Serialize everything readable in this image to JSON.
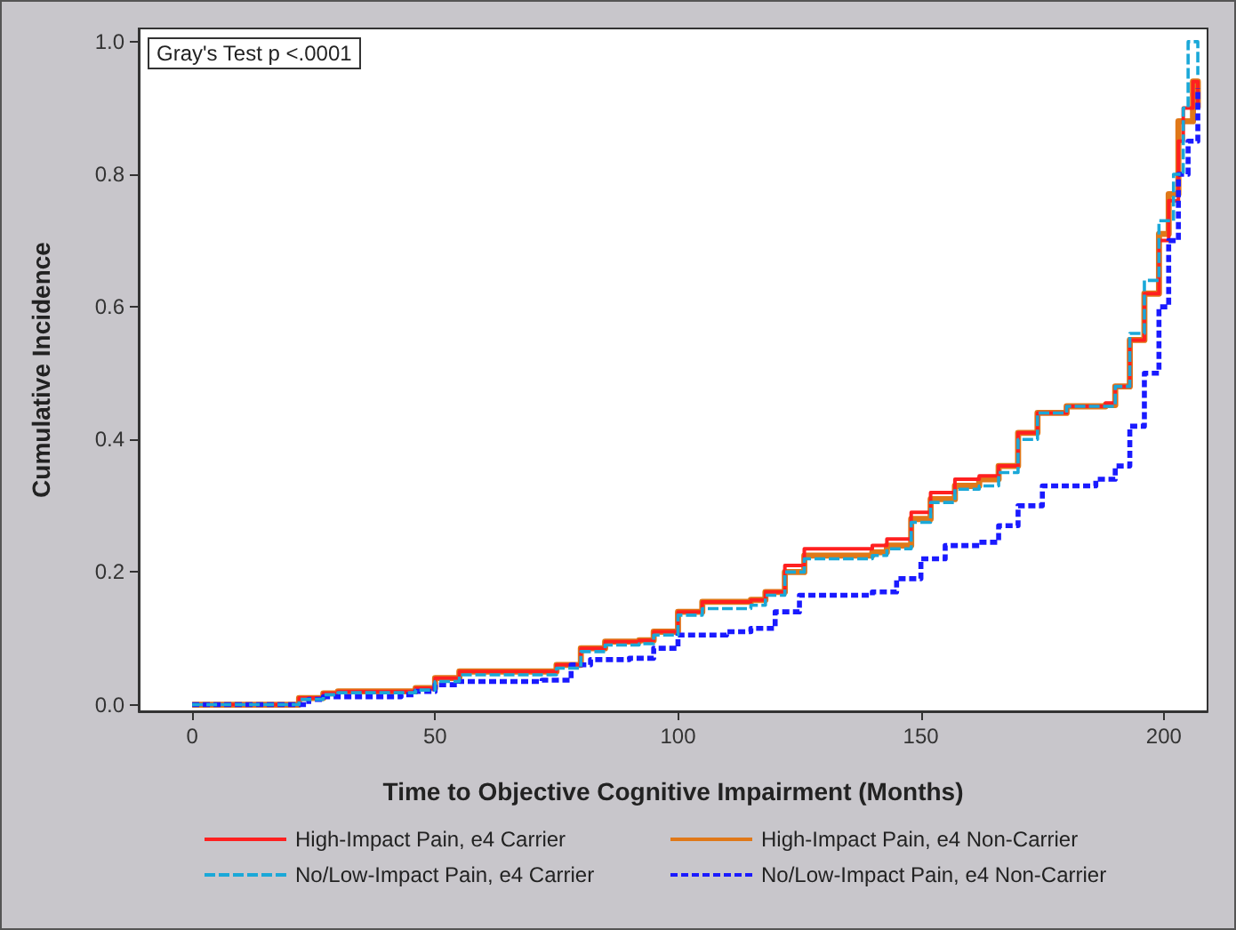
{
  "chart_data": {
    "type": "step",
    "xlabel": "Time to Objective Cognitive Impairment (Months)",
    "ylabel": "Cumulative Incidence",
    "annotations": [
      "Gray's Test p <.0001"
    ],
    "xlim": [
      -11,
      209
    ],
    "xticks": [
      0,
      50,
      100,
      150,
      200
    ],
    "ylim": [
      -0.01,
      1.02
    ],
    "yticks": [
      {
        "value": 0,
        "label": "0.0"
      },
      {
        "value": 0.2,
        "label": "0.2"
      },
      {
        "value": 0.4,
        "label": "0.4"
      },
      {
        "value": 0.6,
        "label": "0.6"
      },
      {
        "value": 0.8,
        "label": "0.8"
      },
      {
        "value": 1,
        "label": "1.0"
      }
    ],
    "grid": false,
    "legend": "bottom",
    "marker": "none",
    "series": [
      {
        "name": "High-Impact Pain, e4 Carrier",
        "color": "#ff2020",
        "line_style": "solid",
        "x": [
          0,
          18,
          22,
          27,
          30,
          43,
          46,
          50,
          55,
          70,
          75,
          80,
          85,
          92,
          95,
          100,
          105,
          115,
          118,
          122,
          126,
          140,
          143,
          148,
          152,
          157,
          162,
          166,
          170,
          174,
          180,
          188,
          190,
          193,
          196,
          199,
          201,
          203,
          204,
          206,
          207
        ],
        "values": [
          0,
          0,
          0.01,
          0.017,
          0.02,
          0.02,
          0.025,
          0.04,
          0.05,
          0.05,
          0.06,
          0.085,
          0.095,
          0.097,
          0.11,
          0.14,
          0.155,
          0.158,
          0.17,
          0.21,
          0.235,
          0.24,
          0.25,
          0.29,
          0.32,
          0.34,
          0.345,
          0.36,
          0.41,
          0.44,
          0.45,
          0.455,
          0.48,
          0.55,
          0.62,
          0.7,
          0.76,
          0.85,
          0.9,
          0.94,
          0.9
        ]
      },
      {
        "name": "High-Impact Pain, e4 Non-Carrier",
        "color": "#e07818",
        "line_style": "solid",
        "x": [
          0,
          18,
          22,
          27,
          30,
          43,
          46,
          50,
          55,
          70,
          75,
          80,
          85,
          92,
          95,
          100,
          105,
          115,
          118,
          122,
          126,
          140,
          143,
          148,
          152,
          157,
          162,
          166,
          170,
          174,
          180,
          188,
          190,
          193,
          196,
          199,
          201,
          203,
          206,
          207
        ],
        "values": [
          0,
          0,
          0.01,
          0.017,
          0.02,
          0.02,
          0.025,
          0.04,
          0.05,
          0.05,
          0.06,
          0.085,
          0.095,
          0.097,
          0.11,
          0.14,
          0.155,
          0.158,
          0.17,
          0.2,
          0.225,
          0.23,
          0.24,
          0.28,
          0.31,
          0.33,
          0.34,
          0.36,
          0.41,
          0.44,
          0.45,
          0.452,
          0.48,
          0.55,
          0.62,
          0.71,
          0.77,
          0.88,
          0.94,
          0.9
        ]
      },
      {
        "name": "No/Low-Impact Pain, e4 Carrier",
        "color": "#1aa8d8",
        "line_style": "dashed",
        "x": [
          0,
          18,
          22,
          27,
          30,
          43,
          46,
          50,
          55,
          70,
          75,
          80,
          85,
          92,
          95,
          100,
          105,
          115,
          118,
          122,
          126,
          140,
          143,
          148,
          152,
          157,
          162,
          166,
          170,
          174,
          180,
          188,
          190,
          193,
          196,
          199,
          202,
          204,
          205,
          207
        ],
        "values": [
          0,
          0,
          0.008,
          0.015,
          0.018,
          0.018,
          0.022,
          0.035,
          0.045,
          0.045,
          0.055,
          0.08,
          0.09,
          0.092,
          0.105,
          0.135,
          0.145,
          0.15,
          0.165,
          0.2,
          0.22,
          0.225,
          0.235,
          0.275,
          0.305,
          0.325,
          0.33,
          0.35,
          0.4,
          0.44,
          0.45,
          0.45,
          0.48,
          0.56,
          0.64,
          0.73,
          0.8,
          0.9,
          1.0,
          0.95
        ]
      },
      {
        "name": "No/Low-Impact Pain, e4 Non-Carrier",
        "color": "#1a1aff",
        "line_style": "dashed",
        "x": [
          0,
          20,
          24,
          27,
          43,
          46,
          50,
          55,
          72,
          78,
          82,
          90,
          95,
          100,
          110,
          115,
          120,
          125,
          140,
          145,
          150,
          155,
          162,
          166,
          170,
          175,
          186,
          190,
          193,
          196,
          199,
          201,
          203,
          205,
          207
        ],
        "values": [
          0,
          0,
          0.008,
          0.012,
          0.015,
          0.02,
          0.03,
          0.035,
          0.037,
          0.06,
          0.068,
          0.07,
          0.085,
          0.105,
          0.11,
          0.115,
          0.14,
          0.165,
          0.17,
          0.19,
          0.22,
          0.24,
          0.245,
          0.27,
          0.3,
          0.33,
          0.34,
          0.36,
          0.42,
          0.5,
          0.6,
          0.7,
          0.8,
          0.85,
          0.93
        ]
      }
    ]
  }
}
